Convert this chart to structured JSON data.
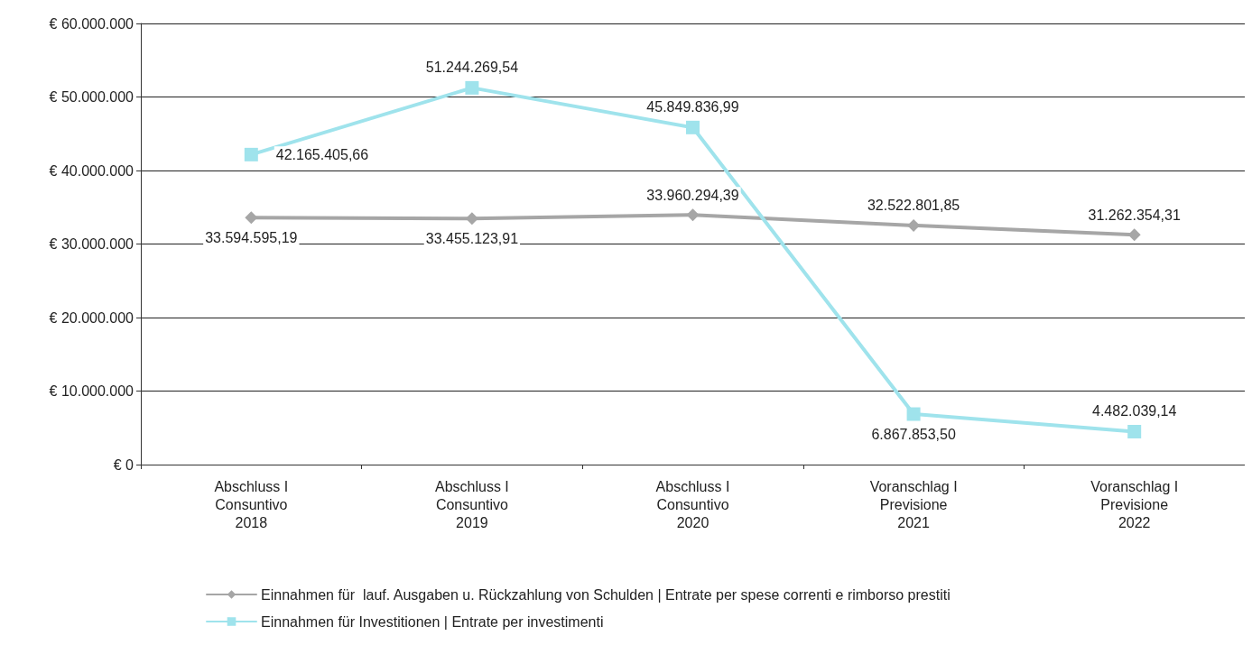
{
  "chart_data": {
    "type": "line",
    "categories": [
      "Abschluss I\nConsuntivo\n2018",
      "Abschluss I\nConsuntivo\n2019",
      "Abschluss I\nConsuntivo\n2020",
      "Voranschlag I\nPrevisione\n2021",
      "Voranschlag I\nPrevisione\n2022"
    ],
    "series": [
      {
        "name": "Einnahmen für  lauf. Ausgaben u. Rückzahlung von Schulden | Entrate per spese correnti e rimborso prestiti",
        "color": "#a6a6a6",
        "marker": "diamond",
        "values": [
          33594595.19,
          33455123.91,
          33960294.39,
          32522801.85,
          31262354.31
        ],
        "value_labels": [
          "33.594.595,19",
          "33.455.123,91",
          "33.960.294,39",
          "32.522.801,85",
          "31.262.354,31"
        ]
      },
      {
        "name": "Einnahmen für Investitionen | Entrate per investimenti",
        "color": "#9fe3ec",
        "marker": "square",
        "values": [
          42165405.66,
          51244269.54,
          45849836.99,
          6867853.5,
          4482039.14
        ],
        "value_labels": [
          "42.165.405,66",
          "51.244.269,54",
          "45.849.836,99",
          "6.867.853,50",
          "4.482.039,14"
        ]
      }
    ],
    "ylim": [
      0,
      60000000
    ],
    "yticks": [
      {
        "value": 0,
        "label": "€ 0"
      },
      {
        "value": 10000000,
        "label": "€ 10.000.000"
      },
      {
        "value": 20000000,
        "label": "€ 20.000.000"
      },
      {
        "value": 30000000,
        "label": "€ 30.000.000"
      },
      {
        "value": 40000000,
        "label": "€ 40.000.000"
      },
      {
        "value": 50000000,
        "label": "€ 50.000.000"
      },
      {
        "value": 60000000,
        "label": "€ 60.000.000"
      }
    ],
    "grid": "y",
    "legend": "bottom",
    "line_style": "solid"
  }
}
